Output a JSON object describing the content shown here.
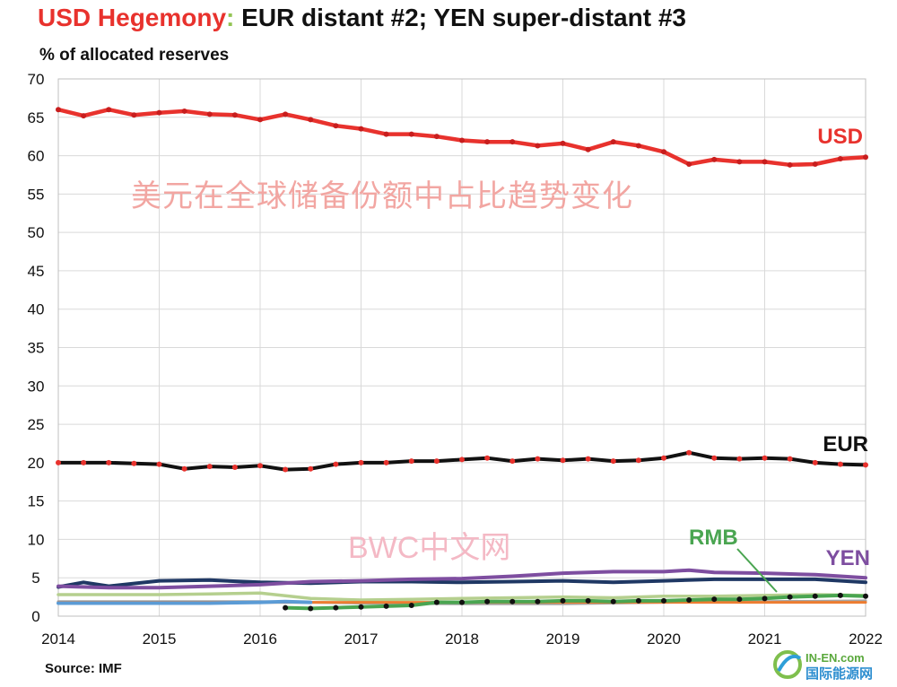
{
  "header": {
    "title_part1": "USD Hegemony",
    "title_colon": ":",
    "title_part2": " EUR distant #2; YEN super-distant  #3",
    "subtitle": "% of allocated reserves"
  },
  "footer": {
    "source": "Source: IMF"
  },
  "watermarks": {
    "chinese_overlay": "美元在全球储备份额中占比趋势变化",
    "bwc": "BWC中文网",
    "logo_top": "IN-EN.com",
    "logo_bottom": "国际能源网"
  },
  "chart_data": {
    "type": "line",
    "title": "USD Hegemony: EUR distant #2; YEN super-distant  #3",
    "ylabel": "% of allocated reserves",
    "xlabel": "",
    "ylim": [
      0,
      70
    ],
    "xlim": [
      2014,
      2022
    ],
    "y_ticks": [
      0,
      5,
      10,
      15,
      20,
      25,
      30,
      35,
      40,
      45,
      50,
      55,
      60,
      65,
      70
    ],
    "x_ticks": [
      2014,
      2015,
      2016,
      2017,
      2018,
      2019,
      2020,
      2021,
      2022
    ],
    "grid": true,
    "legend": "direct labels",
    "source": "IMF",
    "series": [
      {
        "name": "USD",
        "color": "#e8322d",
        "dot_color": "#c81e1e",
        "width": 4.5,
        "markers": true,
        "x": [
          2014,
          2014.25,
          2014.5,
          2014.75,
          2015,
          2015.25,
          2015.5,
          2015.75,
          2016,
          2016.25,
          2016.5,
          2016.75,
          2017,
          2017.25,
          2017.5,
          2017.75,
          2018,
          2018.25,
          2018.5,
          2018.75,
          2019,
          2019.25,
          2019.5,
          2019.75,
          2020,
          2020.25,
          2020.5,
          2020.75,
          2021,
          2021.25,
          2021.5,
          2021.75,
          2022
        ],
        "values": [
          66.0,
          65.2,
          66.0,
          65.3,
          65.6,
          65.8,
          65.4,
          65.3,
          64.7,
          65.4,
          64.7,
          63.9,
          63.5,
          62.8,
          62.8,
          62.5,
          62.0,
          61.8,
          61.8,
          61.3,
          61.6,
          60.8,
          61.8,
          61.3,
          60.5,
          58.9,
          59.5,
          59.2,
          59.2,
          58.8,
          58.9,
          59.6,
          59.8
        ]
      },
      {
        "name": "EUR",
        "color": "#111111",
        "dot_color": "#e8322d",
        "width": 4,
        "markers": true,
        "x": [
          2014,
          2014.25,
          2014.5,
          2014.75,
          2015,
          2015.25,
          2015.5,
          2015.75,
          2016,
          2016.25,
          2016.5,
          2016.75,
          2017,
          2017.25,
          2017.5,
          2017.75,
          2018,
          2018.25,
          2018.5,
          2018.75,
          2019,
          2019.25,
          2019.5,
          2019.75,
          2020,
          2020.25,
          2020.5,
          2020.75,
          2021,
          2021.25,
          2021.5,
          2021.75,
          2022
        ],
        "values": [
          20.0,
          20.0,
          20.0,
          19.9,
          19.8,
          19.2,
          19.5,
          19.4,
          19.6,
          19.1,
          19.2,
          19.8,
          20.0,
          20.0,
          20.2,
          20.2,
          20.4,
          20.6,
          20.2,
          20.5,
          20.3,
          20.5,
          20.2,
          20.3,
          20.6,
          21.3,
          20.6,
          20.5,
          20.6,
          20.5,
          20.0,
          19.8,
          19.7
        ]
      },
      {
        "name": "YEN",
        "color": "#7e4ea0",
        "width": 4,
        "markers": false,
        "x": [
          2014,
          2014.5,
          2015,
          2015.5,
          2016,
          2016.5,
          2017,
          2017.5,
          2018,
          2018.5,
          2019,
          2019.5,
          2020,
          2020.25,
          2020.5,
          2021,
          2021.5,
          2022
        ],
        "values": [
          3.9,
          3.7,
          3.7,
          3.9,
          4.1,
          4.5,
          4.6,
          4.8,
          4.9,
          5.2,
          5.6,
          5.8,
          5.8,
          6.0,
          5.7,
          5.6,
          5.4,
          5.0
        ]
      },
      {
        "name": "RMB",
        "color": "#4aa551",
        "dot_color": "#111111",
        "width": 4,
        "markers": true,
        "x": [
          2016.25,
          2016.5,
          2016.75,
          2017,
          2017.25,
          2017.5,
          2017.75,
          2018,
          2018.25,
          2018.5,
          2018.75,
          2019,
          2019.25,
          2019.5,
          2019.75,
          2020,
          2020.25,
          2020.5,
          2020.75,
          2021,
          2021.25,
          2021.5,
          2021.75,
          2022
        ],
        "values": [
          1.1,
          1.0,
          1.1,
          1.2,
          1.3,
          1.4,
          1.8,
          1.8,
          1.9,
          1.9,
          1.9,
          2.0,
          2.0,
          1.9,
          2.0,
          2.0,
          2.1,
          2.2,
          2.2,
          2.3,
          2.5,
          2.6,
          2.7,
          2.6
        ]
      },
      {
        "name": "",
        "color": "#1f3864",
        "width": 4,
        "markers": false,
        "x": [
          2014,
          2014.25,
          2014.5,
          2015,
          2015.5,
          2016,
          2016.5,
          2017,
          2017.5,
          2018,
          2018.5,
          2019,
          2019.5,
          2020,
          2020.5,
          2021,
          2021.5,
          2022
        ],
        "values": [
          3.8,
          4.4,
          3.9,
          4.6,
          4.7,
          4.4,
          4.3,
          4.5,
          4.5,
          4.4,
          4.5,
          4.6,
          4.4,
          4.6,
          4.8,
          4.8,
          4.8,
          4.4
        ]
      },
      {
        "name": "",
        "color": "#b5cf8e",
        "width": 3.5,
        "markers": false,
        "x": [
          2014,
          2014.5,
          2015,
          2015.5,
          2016,
          2016.5,
          2017,
          2017.5,
          2018,
          2018.5,
          2019,
          2019.5,
          2020,
          2020.5,
          2021,
          2021.5,
          2022
        ],
        "values": [
          2.8,
          2.8,
          2.8,
          2.9,
          3.0,
          2.3,
          2.1,
          2.2,
          2.3,
          2.4,
          2.5,
          2.4,
          2.6,
          2.6,
          2.7,
          2.8,
          2.7
        ]
      },
      {
        "name": "",
        "color": "#a5a5a5",
        "width": 3,
        "markers": false,
        "x": [
          2014,
          2015,
          2016,
          2017,
          2018,
          2019,
          2020,
          2021,
          2022
        ],
        "values": [
          1.9,
          1.9,
          1.9,
          1.7,
          1.6,
          1.6,
          1.8,
          1.9,
          2.0
        ]
      },
      {
        "name": "",
        "color": "#ed7d31",
        "width": 3,
        "markers": false,
        "x": [
          2014,
          2015,
          2016,
          2017,
          2018,
          2019,
          2020,
          2021,
          2022
        ],
        "values": [
          1.8,
          1.8,
          1.8,
          1.8,
          1.8,
          1.8,
          1.8,
          1.8,
          1.8
        ]
      },
      {
        "name": "",
        "color": "#5b9bd5",
        "width": 4,
        "markers": false,
        "x": [
          2014,
          2014.5,
          2015,
          2015.5,
          2016,
          2016.25,
          2016.5
        ],
        "values": [
          1.7,
          1.7,
          1.7,
          1.7,
          1.8,
          1.9,
          1.8
        ]
      }
    ]
  }
}
